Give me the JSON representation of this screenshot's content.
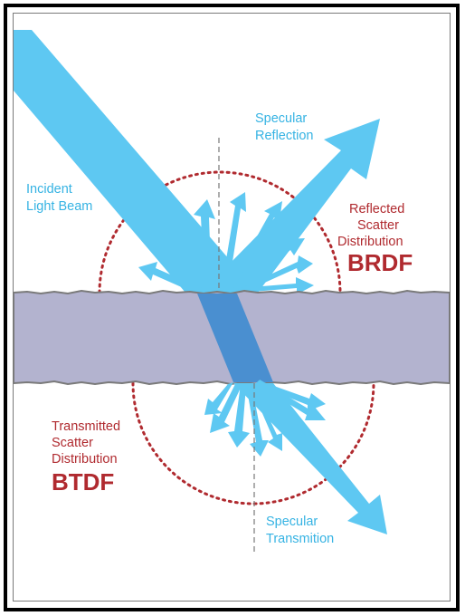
{
  "labels": {
    "specular_reflection": [
      "Specular",
      "Reflection"
    ],
    "incident": [
      "Incident",
      "Light Beam"
    ],
    "reflected_scatter": [
      "Reflected",
      "Scatter",
      "Distribution"
    ],
    "brdf": "BRDF",
    "transmitted_scatter": [
      "Transmitted",
      "Scatter",
      "Distribution"
    ],
    "btdf": "BTDF",
    "specular_transmission": [
      "Specular",
      "Transmition"
    ]
  },
  "colors": {
    "beam": "#5ec8f2",
    "beam_dark": "#4a8fd0",
    "slab": "#b3b3cf",
    "slab_edge": "#7a7a7a",
    "dotted": "#b02a2f",
    "label_blue": "#36b3e3",
    "label_red": "#b02a2f"
  }
}
